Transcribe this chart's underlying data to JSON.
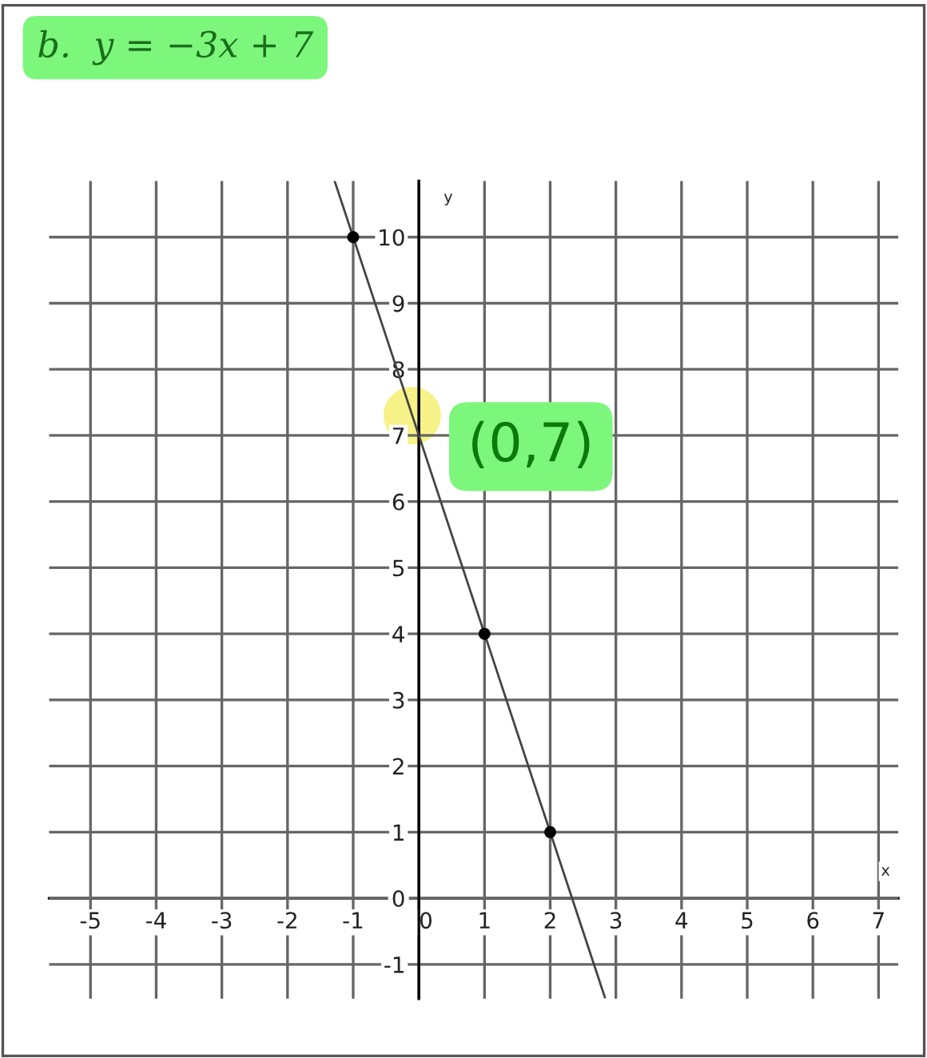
{
  "chart_data": {
    "type": "line",
    "title": "b.  y = −3x + 7",
    "xlabel": "x",
    "ylabel": "y",
    "series": [
      {
        "x": [
          -1.283,
          2.833
        ],
        "values": [
          10.85,
          -1.5
        ],
        "color": "#444444"
      },
      {
        "type": "scatter",
        "x": [
          -1,
          1,
          2
        ],
        "values": [
          10,
          4,
          1
        ],
        "color": "#000000",
        "marker": "circle"
      }
    ],
    "annotations": [
      {
        "text": "(0,7)",
        "x": 0,
        "y": 7
      }
    ],
    "xlim": [
      -5.63,
      7.3
    ],
    "ylim": [
      -1.52,
      10.85
    ],
    "xticks": [
      -5,
      -4,
      -3,
      -2,
      -1,
      0,
      1,
      2,
      3,
      4,
      5,
      6,
      7
    ],
    "yticks": [
      -1,
      0,
      1,
      2,
      3,
      4,
      5,
      6,
      7,
      8,
      9,
      10
    ],
    "grid": true
  }
}
